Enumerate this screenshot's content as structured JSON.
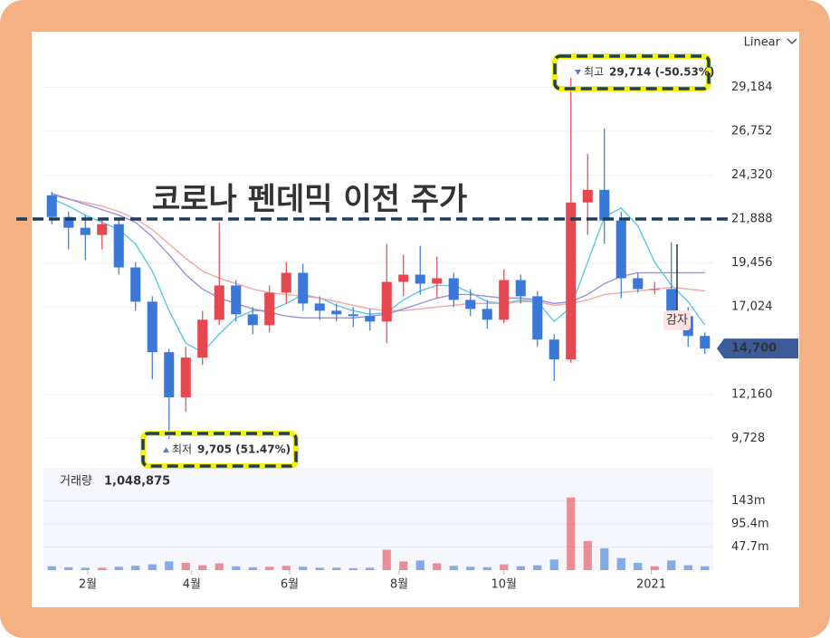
{
  "chart_data": {
    "type": "candlestick",
    "scale": "Linear",
    "xlim": [
      -0.5,
      39.5
    ],
    "xticks": [
      {
        "value": 2.15,
        "label": "2월"
      },
      {
        "value": 8.36,
        "label": "4월"
      },
      {
        "value": 14.2,
        "label": "6월"
      },
      {
        "value": 20.74,
        "label": "8월"
      },
      {
        "value": 27.0,
        "label": "10월"
      },
      {
        "value": 35.8,
        "label": "2021"
      }
    ],
    "ylim": [
      8186,
      32272
    ],
    "yticks": [
      {
        "value": 9728,
        "label": "9,728"
      },
      {
        "value": 12160,
        "label": "12,160"
      },
      {
        "value": 17024,
        "label": "17,024"
      },
      {
        "value": 19456,
        "label": "19,456"
      },
      {
        "value": 21888,
        "label": "21,888"
      },
      {
        "value": 24320,
        "label": "24,320"
      },
      {
        "value": 26752,
        "label": "26,752"
      },
      {
        "value": 29184,
        "label": "29,184"
      }
    ],
    "up_color": "#e5484f",
    "down_color": "#3b78d8",
    "open": [
      23200,
      22000,
      21400,
      21000,
      21600,
      19200,
      17300,
      14500,
      12000,
      14200,
      16300,
      18200,
      16600,
      16000,
      17800,
      18900,
      17200,
      16800,
      16600,
      16500,
      16200,
      18400,
      18800,
      18300,
      18600,
      17400,
      16900,
      16300,
      18500,
      17600,
      15200,
      14100,
      22800,
      23500,
      21800,
      18600,
      18000,
      18000,
      16500,
      15400
    ],
    "high": [
      23400,
      22300,
      22100,
      21900,
      21900,
      19500,
      17600,
      14700,
      14800,
      16800,
      21700,
      18500,
      17000,
      18200,
      19500,
      19400,
      17600,
      17200,
      17000,
      16900,
      20500,
      19900,
      20400,
      19800,
      18900,
      18000,
      17400,
      19100,
      18800,
      17900,
      15500,
      29714,
      25500,
      26900,
      22300,
      18900,
      18400,
      20600,
      17000,
      15600
    ],
    "low": [
      21600,
      20200,
      19600,
      20200,
      18800,
      16800,
      13000,
      9705,
      11200,
      13800,
      16000,
      16200,
      15500,
      15600,
      17200,
      16800,
      16300,
      16200,
      15900,
      15700,
      15000,
      17600,
      17700,
      17500,
      17000,
      16500,
      15800,
      16100,
      17200,
      14800,
      12900,
      13900,
      21000,
      20500,
      17500,
      17800,
      17700,
      16000,
      14800,
      14400
    ],
    "close": [
      22000,
      21400,
      21000,
      21600,
      19200,
      17300,
      14500,
      12000,
      14200,
      16300,
      18200,
      16600,
      16000,
      17800,
      18900,
      17200,
      16800,
      16600,
      16500,
      16200,
      18400,
      18800,
      18300,
      18600,
      17400,
      16900,
      16300,
      18500,
      17600,
      15200,
      14100,
      22800,
      23500,
      21800,
      18600,
      18000,
      18000,
      16500,
      15400,
      14700
    ],
    "moving_averages": [
      {
        "color": "#5cc8e6",
        "values": [
          23000,
          22600,
          22100,
          21700,
          21300,
          20500,
          19000,
          16800,
          15000,
          14500,
          15500,
          16400,
          16800,
          16800,
          17200,
          17700,
          17500,
          17100,
          16800,
          16600,
          16700,
          17400,
          17900,
          18200,
          18200,
          17800,
          17300,
          17200,
          17400,
          17300,
          16200,
          17000,
          19500,
          22000,
          22500,
          21500,
          19500,
          18200,
          17300,
          16000
        ]
      },
      {
        "color": "#f4a6a6",
        "values": [
          23200,
          23000,
          22800,
          22600,
          22300,
          21900,
          21300,
          20500,
          19700,
          19000,
          18600,
          18300,
          18000,
          17800,
          17700,
          17600,
          17500,
          17300,
          17100,
          16900,
          16800,
          16800,
          16900,
          17000,
          17100,
          17200,
          17200,
          17200,
          17300,
          17300,
          17100,
          17200,
          17400,
          17700,
          17800,
          17900,
          18000,
          18100,
          18000,
          17900
        ]
      },
      {
        "color": "#9b8fe0",
        "values": [
          23300,
          23000,
          22700,
          22400,
          22100,
          21700,
          20900,
          19900,
          18800,
          18000,
          17500,
          17200,
          16900,
          16700,
          16500,
          16400,
          16400,
          16400,
          16400,
          16500,
          16600,
          16900,
          17200,
          17500,
          17700,
          17700,
          17600,
          17500,
          17500,
          17400,
          17200,
          17300,
          17700,
          18300,
          18700,
          18900,
          18900,
          18900,
          18900,
          18900
        ]
      }
    ],
    "volume": [
      8000000,
      6000000,
      5000000,
      5000000,
      7000000,
      9000000,
      12000000,
      18000000,
      15000000,
      10000000,
      14000000,
      8000000,
      6000000,
      7000000,
      9000000,
      7000000,
      5000000,
      5000000,
      4000000,
      5000000,
      42000000,
      18000000,
      20000000,
      14000000,
      9000000,
      7000000,
      6000000,
      12000000,
      8000000,
      10000000,
      22000000,
      150000000,
      60000000,
      45000000,
      25000000,
      15000000,
      8000000,
      20000000,
      10000000,
      8000000
    ],
    "y2lim": [
      0,
      211000000
    ],
    "y2ticks": [
      {
        "value": 47700000,
        "label": "47.7m"
      },
      {
        "value": 95400000,
        "label": "95.4m"
      },
      {
        "value": 143000000,
        "label": "143m"
      }
    ],
    "volume_label": "거래량",
    "volume_value": "1,048,875",
    "last_price": {
      "value": 14700,
      "label": "14,700"
    },
    "max_marker": {
      "label": "최고",
      "value": "29,714 (-50.53%)"
    },
    "min_marker": {
      "label": "최저",
      "value": "9,705 (51.47%)"
    },
    "reference_line": {
      "value": 21888,
      "label": "코로나 펜데믹 이전 주가"
    },
    "event_label": "감자"
  }
}
